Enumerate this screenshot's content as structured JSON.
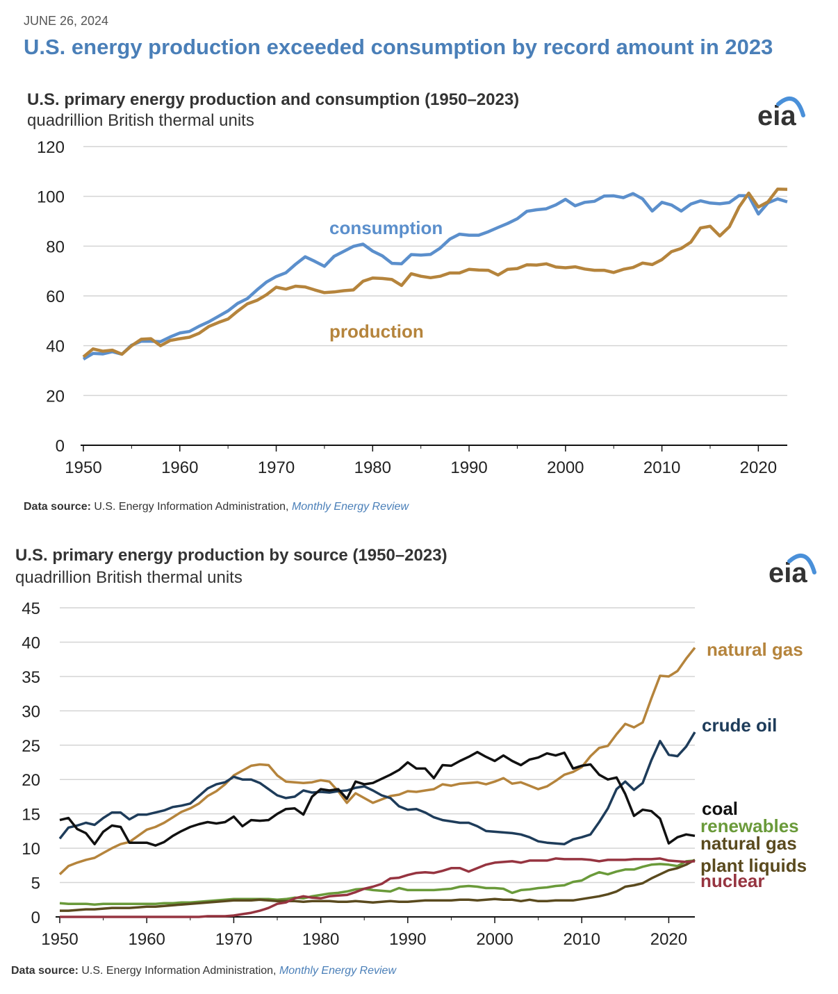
{
  "header": {
    "date": "JUNE 26, 2024",
    "headline": "U.S. energy production exceeded consumption by record amount in 2023"
  },
  "logo_text": "eia",
  "source": {
    "label": "Data source:",
    "text": " U.S. Energy Information Administration, ",
    "link": "Monthly Energy Review"
  },
  "chart_data": [
    {
      "type": "line",
      "title": "U.S. primary energy production and consumption (1950–2023)",
      "subtitle": "quadrillion British thermal units",
      "xlim": [
        1950,
        2023
      ],
      "ylim": [
        0,
        120
      ],
      "yticks": [
        0,
        20,
        40,
        60,
        80,
        100,
        120
      ],
      "xticks": [
        1950,
        1960,
        1970,
        1980,
        1990,
        2000,
        2010,
        2020
      ],
      "grid": true,
      "x": [
        1950,
        1951,
        1952,
        1953,
        1954,
        1955,
        1956,
        1957,
        1958,
        1959,
        1960,
        1961,
        1962,
        1963,
        1964,
        1965,
        1966,
        1967,
        1968,
        1969,
        1970,
        1971,
        1972,
        1973,
        1974,
        1975,
        1976,
        1977,
        1978,
        1979,
        1980,
        1981,
        1982,
        1983,
        1984,
        1985,
        1986,
        1987,
        1988,
        1989,
        1990,
        1991,
        1992,
        1993,
        1994,
        1995,
        1996,
        1997,
        1998,
        1999,
        2000,
        2001,
        2002,
        2003,
        2004,
        2005,
        2006,
        2007,
        2008,
        2009,
        2010,
        2011,
        2012,
        2013,
        2014,
        2015,
        2016,
        2017,
        2018,
        2019,
        2020,
        2021,
        2022,
        2023
      ],
      "series": [
        {
          "name": "consumption",
          "color": "#5b8fcc",
          "values": [
            34.6,
            36.9,
            36.7,
            37.6,
            36.6,
            40.2,
            41.8,
            41.8,
            41.6,
            43.5,
            45.1,
            45.7,
            47.8,
            49.6,
            51.8,
            54.0,
            57.0,
            58.9,
            62.4,
            65.6,
            67.8,
            69.3,
            72.7,
            75.7,
            73.9,
            71.9,
            75.9,
            77.9,
            79.9,
            80.8,
            78.0,
            76.1,
            73.1,
            72.9,
            76.6,
            76.4,
            76.7,
            79.2,
            82.8,
            84.8,
            84.4,
            84.4,
            85.8,
            87.5,
            89.1,
            91.0,
            94.0,
            94.6,
            95.0,
            96.6,
            98.8,
            96.2,
            97.6,
            98.0,
            100.1,
            100.2,
            99.5,
            101.1,
            99.0,
            94.1,
            97.6,
            96.5,
            94.1,
            96.9,
            98.2,
            97.3,
            97.0,
            97.5,
            100.3,
            100.2,
            92.9,
            97.4,
            99.0,
            97.8
          ]
        },
        {
          "name": "production",
          "color": "#b5843c",
          "values": [
            35.5,
            38.7,
            37.8,
            38.2,
            36.6,
            40.0,
            42.6,
            42.8,
            40.0,
            42.1,
            42.8,
            43.4,
            45.0,
            47.7,
            49.3,
            50.7,
            53.9,
            56.8,
            58.2,
            60.5,
            63.5,
            62.7,
            63.9,
            63.6,
            62.4,
            61.3,
            61.6,
            62.1,
            62.4,
            65.9,
            67.2,
            67.0,
            66.6,
            64.2,
            68.9,
            67.9,
            67.3,
            67.9,
            69.2,
            69.2,
            70.7,
            70.4,
            70.3,
            68.4,
            70.7,
            71.0,
            72.5,
            72.4,
            72.9,
            71.6,
            71.3,
            71.7,
            70.8,
            70.3,
            70.3,
            69.4,
            70.7,
            71.4,
            73.2,
            72.6,
            74.6,
            77.8,
            79.1,
            81.6,
            87.3,
            88.0,
            84.1,
            87.8,
            95.7,
            101.3,
            95.7,
            97.8,
            102.9,
            102.8
          ]
        }
      ],
      "annotations": [
        "consumption",
        "production"
      ]
    },
    {
      "type": "line",
      "title": "U.S. primary energy production by source (1950–2023)",
      "subtitle": "quadrillion British thermal units",
      "xlim": [
        1950,
        2023
      ],
      "ylim": [
        0,
        45
      ],
      "yticks": [
        0,
        5,
        10,
        15,
        20,
        25,
        30,
        35,
        40,
        45
      ],
      "xticks": [
        1950,
        1960,
        1970,
        1980,
        1990,
        2000,
        2010,
        2020
      ],
      "grid": true,
      "legend": "right",
      "x": [
        1950,
        1951,
        1952,
        1953,
        1954,
        1955,
        1956,
        1957,
        1958,
        1959,
        1960,
        1961,
        1962,
        1963,
        1964,
        1965,
        1966,
        1967,
        1968,
        1969,
        1970,
        1971,
        1972,
        1973,
        1974,
        1975,
        1976,
        1977,
        1978,
        1979,
        1980,
        1981,
        1982,
        1983,
        1984,
        1985,
        1986,
        1987,
        1988,
        1989,
        1990,
        1991,
        1992,
        1993,
        1994,
        1995,
        1996,
        1997,
        1998,
        1999,
        2000,
        2001,
        2002,
        2003,
        2004,
        2005,
        2006,
        2007,
        2008,
        2009,
        2010,
        2011,
        2012,
        2013,
        2014,
        2015,
        2016,
        2017,
        2018,
        2019,
        2020,
        2021,
        2022,
        2023
      ],
      "series": [
        {
          "name": "natural gas",
          "color": "#b5843c",
          "values": [
            6.2,
            7.4,
            7.9,
            8.3,
            8.6,
            9.3,
            10.0,
            10.6,
            10.9,
            11.8,
            12.7,
            13.1,
            13.7,
            14.5,
            15.3,
            15.8,
            16.5,
            17.6,
            18.3,
            19.3,
            20.6,
            21.3,
            22.0,
            22.2,
            22.1,
            20.6,
            19.7,
            19.6,
            19.5,
            19.6,
            19.9,
            19.7,
            18.3,
            16.6,
            18.0,
            17.3,
            16.6,
            17.1,
            17.6,
            17.8,
            18.3,
            18.2,
            18.4,
            18.6,
            19.3,
            19.1,
            19.4,
            19.5,
            19.6,
            19.3,
            19.7,
            20.2,
            19.4,
            19.6,
            19.1,
            18.6,
            19.0,
            19.8,
            20.7,
            21.1,
            21.8,
            23.4,
            24.6,
            24.9,
            26.6,
            28.1,
            27.6,
            28.3,
            31.8,
            35.1,
            35.0,
            35.8,
            37.6,
            39.2
          ]
        },
        {
          "name": "crude oil",
          "color": "#1e3c5a",
          "values": [
            11.4,
            13.0,
            13.3,
            13.7,
            13.4,
            14.4,
            15.2,
            15.2,
            14.2,
            14.9,
            14.9,
            15.2,
            15.5,
            16.0,
            16.2,
            16.5,
            17.6,
            18.7,
            19.3,
            19.6,
            20.4,
            20.0,
            20.0,
            19.5,
            18.6,
            17.7,
            17.3,
            17.5,
            18.4,
            18.1,
            18.2,
            18.1,
            18.3,
            18.4,
            18.8,
            19.0,
            18.4,
            17.7,
            17.3,
            16.1,
            15.6,
            15.7,
            15.2,
            14.5,
            14.1,
            13.9,
            13.7,
            13.7,
            13.2,
            12.5,
            12.4,
            12.3,
            12.2,
            12.0,
            11.6,
            11.0,
            10.8,
            10.7,
            10.6,
            11.3,
            11.6,
            12.0,
            13.8,
            15.8,
            18.6,
            19.7,
            18.5,
            19.5,
            22.8,
            25.6,
            23.6,
            23.4,
            24.8,
            26.9
          ]
        },
        {
          "name": "coal",
          "color": "#111111",
          "values": [
            14.1,
            14.4,
            12.8,
            12.2,
            10.6,
            12.4,
            13.3,
            13.1,
            10.8,
            10.8,
            10.8,
            10.4,
            10.9,
            11.8,
            12.5,
            13.1,
            13.5,
            13.8,
            13.6,
            13.8,
            14.6,
            13.2,
            14.1,
            14.0,
            14.1,
            15.0,
            15.7,
            15.8,
            14.9,
            17.5,
            18.6,
            18.4,
            18.6,
            17.2,
            19.7,
            19.3,
            19.5,
            20.1,
            20.7,
            21.4,
            22.5,
            21.6,
            21.6,
            20.2,
            22.1,
            22.0,
            22.7,
            23.3,
            24.0,
            23.3,
            22.7,
            23.5,
            22.7,
            22.1,
            22.9,
            23.2,
            23.8,
            23.5,
            23.9,
            21.6,
            22.0,
            22.2,
            20.7,
            20.0,
            20.3,
            17.9,
            14.7,
            15.6,
            15.4,
            14.3,
            10.7,
            11.6,
            12.0,
            11.8
          ]
        },
        {
          "name": "renewables",
          "color": "#6a9a3a",
          "values": [
            2.0,
            1.9,
            1.9,
            1.9,
            1.8,
            1.9,
            1.9,
            1.9,
            1.9,
            1.9,
            1.9,
            1.9,
            2.0,
            2.0,
            2.1,
            2.1,
            2.2,
            2.3,
            2.4,
            2.5,
            2.6,
            2.6,
            2.6,
            2.6,
            2.6,
            2.5,
            2.6,
            2.8,
            2.7,
            3.0,
            3.2,
            3.4,
            3.5,
            3.7,
            4.0,
            4.1,
            3.9,
            3.8,
            3.7,
            4.2,
            3.9,
            3.9,
            3.9,
            3.9,
            4.0,
            4.1,
            4.4,
            4.5,
            4.4,
            4.2,
            4.2,
            4.1,
            3.5,
            3.9,
            4.0,
            4.2,
            4.3,
            4.5,
            4.6,
            5.1,
            5.3,
            6.0,
            6.5,
            6.2,
            6.6,
            6.9,
            6.9,
            7.3,
            7.6,
            7.7,
            7.6,
            7.4,
            8.1,
            8.2
          ]
        },
        {
          "name": "natural gas plant liquids",
          "color": "#5a4a1e",
          "values": [
            0.9,
            0.9,
            1.0,
            1.1,
            1.1,
            1.2,
            1.3,
            1.3,
            1.3,
            1.4,
            1.5,
            1.5,
            1.6,
            1.7,
            1.8,
            1.9,
            2.0,
            2.1,
            2.2,
            2.3,
            2.4,
            2.4,
            2.4,
            2.5,
            2.4,
            2.3,
            2.3,
            2.3,
            2.2,
            2.3,
            2.3,
            2.3,
            2.2,
            2.2,
            2.3,
            2.2,
            2.1,
            2.2,
            2.3,
            2.2,
            2.2,
            2.3,
            2.4,
            2.4,
            2.4,
            2.4,
            2.5,
            2.5,
            2.4,
            2.5,
            2.6,
            2.5,
            2.5,
            2.3,
            2.5,
            2.3,
            2.3,
            2.4,
            2.4,
            2.4,
            2.6,
            2.8,
            3.0,
            3.3,
            3.7,
            4.4,
            4.6,
            4.9,
            5.6,
            6.2,
            6.8,
            7.1,
            7.6,
            8.3
          ]
        },
        {
          "name": "nuclear",
          "color": "#963440",
          "values": [
            0.0,
            0.0,
            0.0,
            0.0,
            0.0,
            0.0,
            0.0,
            0.0,
            0.0,
            0.0,
            0.0,
            0.0,
            0.0,
            0.0,
            0.0,
            0.0,
            0.0,
            0.1,
            0.1,
            0.1,
            0.2,
            0.4,
            0.6,
            0.9,
            1.3,
            1.9,
            2.1,
            2.7,
            3.0,
            2.8,
            2.7,
            3.0,
            3.1,
            3.2,
            3.6,
            4.1,
            4.4,
            4.8,
            5.6,
            5.7,
            6.1,
            6.4,
            6.5,
            6.4,
            6.7,
            7.1,
            7.1,
            6.6,
            7.1,
            7.6,
            7.9,
            8.0,
            8.1,
            7.9,
            8.2,
            8.2,
            8.2,
            8.5,
            8.4,
            8.4,
            8.4,
            8.3,
            8.1,
            8.3,
            8.3,
            8.3,
            8.4,
            8.4,
            8.4,
            8.5,
            8.2,
            8.1,
            8.0,
            8.1
          ]
        }
      ],
      "legend_labels": [
        "natural gas",
        "crude oil",
        "coal",
        "renewables",
        "natural gas",
        "plant liquids",
        "nuclear"
      ]
    }
  ]
}
